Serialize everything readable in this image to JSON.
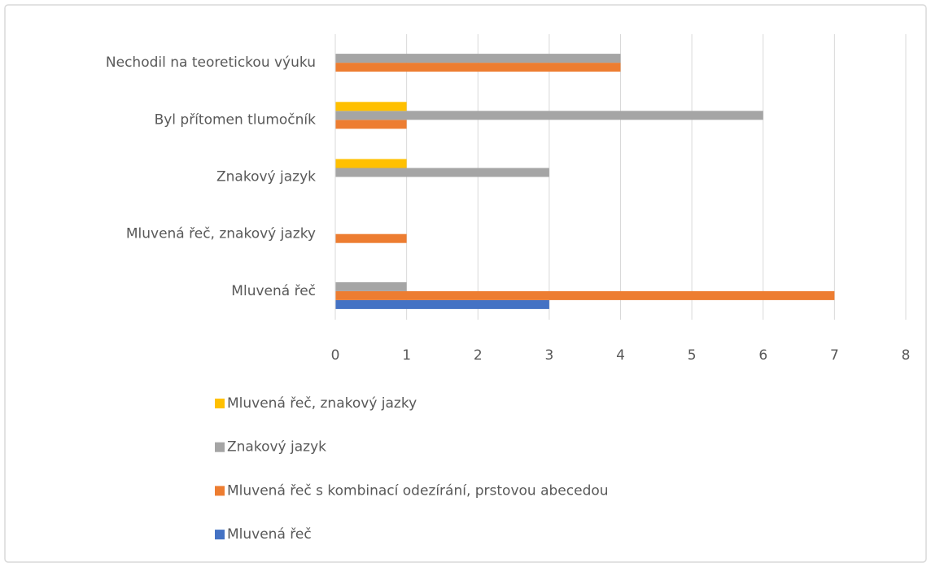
{
  "chart_data": {
    "type": "bar",
    "orientation": "horizontal",
    "categories": [
      "Mluvená řeč",
      "Mluvená řeč, znakový jazky",
      "Znakový jazyk",
      "Byl přítomen tlumočník",
      "Nechodil na teoretickou výuku"
    ],
    "series": [
      {
        "name": "Mluvená řeč",
        "color": "#4472c4",
        "values": [
          3,
          0,
          0,
          0,
          0
        ]
      },
      {
        "name": "Mluvená řeč s kombinací odezírání, prstovou abecedou",
        "color": "#ed7d31",
        "values": [
          7,
          1,
          0,
          1,
          4
        ]
      },
      {
        "name": "Znakový jazyk",
        "color": "#a5a5a5",
        "values": [
          1,
          0,
          3,
          6,
          4
        ]
      },
      {
        "name": "Mluvená řeč, znakový jazky",
        "color": "#ffc000",
        "values": [
          0,
          0,
          1,
          1,
          0
        ]
      }
    ],
    "xlim": [
      0,
      8
    ],
    "xticks": [
      0,
      1,
      2,
      3,
      4,
      5,
      6,
      7,
      8
    ],
    "grid": true,
    "legend": "bottom"
  }
}
